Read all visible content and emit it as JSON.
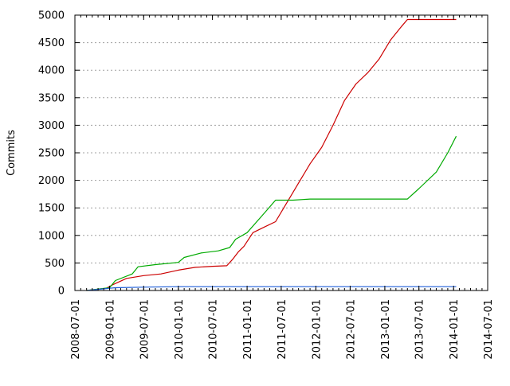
{
  "chart_data": {
    "type": "line",
    "title": "",
    "xlabel": "",
    "ylabel": "Commits",
    "x_axis_type": "date",
    "xlim": [
      "2008-07-01",
      "2014-07-01"
    ],
    "ylim": [
      0,
      5000
    ],
    "grid": "horizontal dashed",
    "legend": "none",
    "x_ticks": [
      "2008-07-01",
      "2009-01-01",
      "2009-07-01",
      "2010-01-01",
      "2010-07-01",
      "2011-01-01",
      "2011-07-01",
      "2012-01-01",
      "2012-07-01",
      "2013-01-01",
      "2013-07-01",
      "2014-01-01",
      "2014-07-01"
    ],
    "y_ticks": [
      "0",
      "500",
      "1000",
      "1500",
      "2000",
      "2500",
      "3000",
      "3500",
      "4000",
      "4500",
      "5000"
    ],
    "series": [
      {
        "color": "#cc0000",
        "points": [
          [
            "2008-09-01",
            0
          ],
          [
            "2008-12-15",
            40
          ],
          [
            "2009-01-15",
            100
          ],
          [
            "2009-04-01",
            220
          ],
          [
            "2009-07-01",
            270
          ],
          [
            "2009-10-01",
            300
          ],
          [
            "2010-01-01",
            370
          ],
          [
            "2010-04-01",
            420
          ],
          [
            "2010-07-01",
            440
          ],
          [
            "2010-09-15",
            450
          ],
          [
            "2010-10-15",
            560
          ],
          [
            "2010-11-15",
            700
          ],
          [
            "2010-12-15",
            800
          ],
          [
            "2011-02-01",
            1050
          ],
          [
            "2011-04-01",
            1150
          ],
          [
            "2011-06-01",
            1250
          ],
          [
            "2011-08-01",
            1600
          ],
          [
            "2011-10-01",
            1950
          ],
          [
            "2011-12-01",
            2300
          ],
          [
            "2012-02-01",
            2600
          ],
          [
            "2012-04-01",
            3000
          ],
          [
            "2012-06-01",
            3450
          ],
          [
            "2012-08-01",
            3750
          ],
          [
            "2012-10-01",
            3950
          ],
          [
            "2012-12-01",
            4200
          ],
          [
            "2013-02-01",
            4550
          ],
          [
            "2013-04-01",
            4800
          ],
          [
            "2013-05-01",
            4920
          ],
          [
            "2014-01-15",
            4920
          ]
        ]
      },
      {
        "color": "#00aa00",
        "points": [
          [
            "2008-09-01",
            0
          ],
          [
            "2009-01-01",
            50
          ],
          [
            "2009-02-01",
            180
          ],
          [
            "2009-05-01",
            300
          ],
          [
            "2009-06-01",
            430
          ],
          [
            "2009-09-01",
            470
          ],
          [
            "2010-01-01",
            510
          ],
          [
            "2010-02-01",
            600
          ],
          [
            "2010-05-01",
            680
          ],
          [
            "2010-08-01",
            720
          ],
          [
            "2010-10-01",
            780
          ],
          [
            "2010-11-01",
            930
          ],
          [
            "2011-01-01",
            1050
          ],
          [
            "2011-04-01",
            1400
          ],
          [
            "2011-06-01",
            1640
          ],
          [
            "2011-09-01",
            1640
          ],
          [
            "2011-12-01",
            1660
          ],
          [
            "2013-05-01",
            1660
          ],
          [
            "2013-07-01",
            1850
          ],
          [
            "2013-10-01",
            2150
          ],
          [
            "2013-12-01",
            2500
          ],
          [
            "2014-01-15",
            2800
          ]
        ]
      },
      {
        "color": "#1f5fd8",
        "points": [
          [
            "2008-09-01",
            0
          ],
          [
            "2008-12-01",
            30
          ],
          [
            "2009-02-01",
            50
          ],
          [
            "2009-07-01",
            60
          ],
          [
            "2010-01-01",
            70
          ],
          [
            "2014-01-15",
            70
          ]
        ]
      }
    ]
  }
}
